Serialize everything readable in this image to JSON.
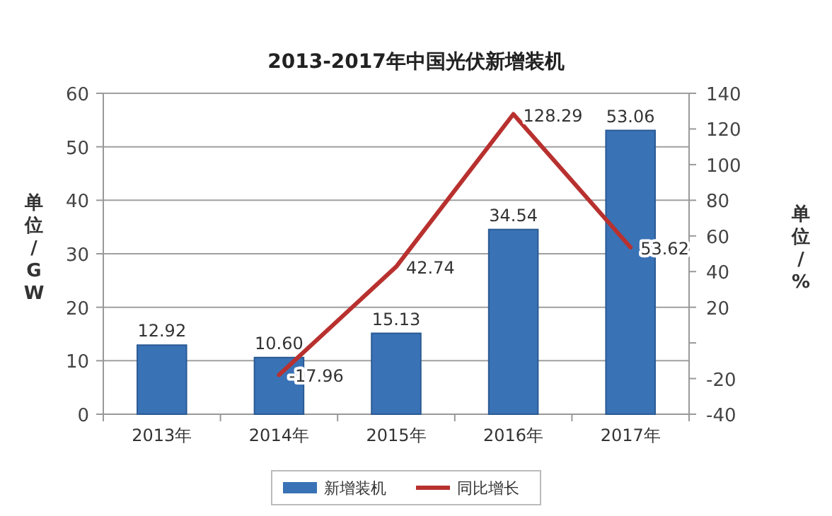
{
  "chart_data": {
    "type": "bar",
    "title": "2013-2017年中国光伏新增装机",
    "ylabel": "单位/GW",
    "y2label": "单位/%",
    "categories": [
      "2013年",
      "2014年",
      "2015年",
      "2016年",
      "2017年"
    ],
    "series": [
      {
        "name": "新增装机",
        "color": "#3a72b6",
        "values": [
          12.92,
          10.6,
          15.13,
          34.54,
          53.06
        ],
        "value_labels": [
          "12.92",
          "10.60",
          "15.13",
          "34.54",
          "53.06"
        ]
      },
      {
        "name": "同比增长",
        "type": "line",
        "axis": "y2",
        "color": "#b8312f",
        "values": [
          null,
          -17.96,
          42.74,
          128.29,
          53.62
        ],
        "value_labels": [
          null,
          "-17.96",
          "42.74",
          "128.29",
          "53.62"
        ]
      }
    ],
    "ylim": [
      0,
      60
    ],
    "yticks": [
      0,
      10,
      20,
      30,
      40,
      50,
      60
    ],
    "y2lim": [
      -40,
      140
    ],
    "y2ticks": [
      -40,
      -20,
      {
        "value": 0,
        "label": null
      },
      20,
      40,
      60,
      80,
      100,
      120,
      140
    ],
    "grid": "y",
    "legend": "bottom",
    "marker": "none",
    "line_style": "solid"
  }
}
